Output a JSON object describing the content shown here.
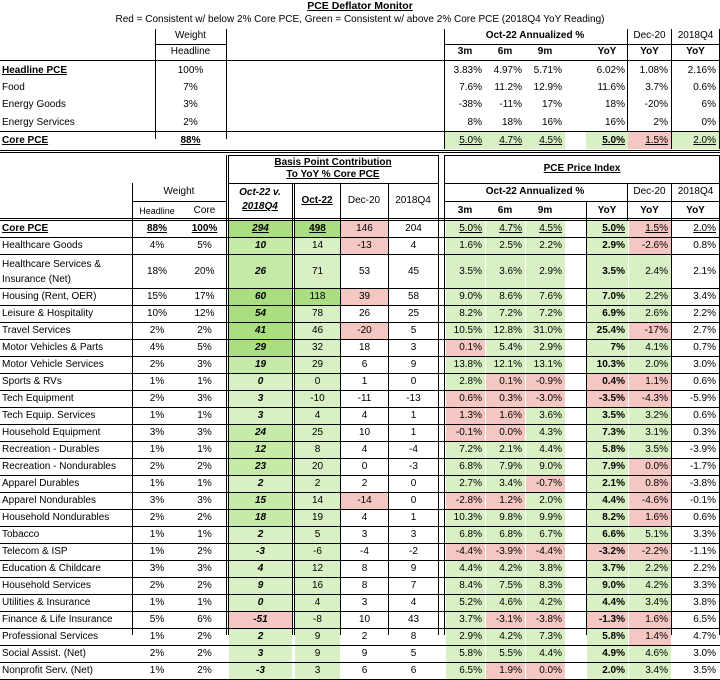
{
  "title": "PCE Deflator Monitor",
  "subtitle": "Red = Consistent w/ below 2% Core PCE, Green = Consistent w/ above 2% Core PCE (2018Q4 YoY Reading)",
  "top": {
    "weight_label": "Weight",
    "headline_label": "Headline",
    "annualized_label": "Oct-22 Annualized %",
    "dec20_label": "Dec-20",
    "q4_label": "2018Q4",
    "cols": [
      "3m",
      "6m",
      "9m",
      "YoY",
      "YoY",
      "YoY"
    ],
    "rows": [
      {
        "name": "Headline PCE",
        "w": "100%",
        "v": [
          "3.83%",
          "4.97%",
          "5.71%",
          "6.02%",
          "1.08%",
          "2.16%"
        ]
      },
      {
        "name": "Food",
        "w": "7%",
        "v": [
          "7.6%",
          "11.2%",
          "12.9%",
          "11.6%",
          "3.7%",
          "0.6%"
        ]
      },
      {
        "name": "Energy Goods",
        "w": "3%",
        "v": [
          "-38%",
          "-11%",
          "17%",
          "18%",
          "-20%",
          "6%"
        ]
      },
      {
        "name": "Energy Services",
        "w": "2%",
        "v": [
          "8%",
          "18%",
          "16%",
          "16%",
          "2%",
          "0%"
        ]
      },
      {
        "name": "Core PCE",
        "w": "88%",
        "v": [
          "5.0%",
          "4.7%",
          "4.5%",
          "5.0%",
          "1.5%",
          "2.0%"
        ]
      }
    ]
  },
  "bottom": {
    "weight_label": "Weight",
    "headline_label": "Headline",
    "core_label": "Core",
    "bp_title1": "Basis Point Contribution",
    "bp_title2": "To YoY % Core PCE",
    "bp_cols": [
      "Oct-22 v.",
      "2018Q4",
      "Oct-22",
      "Dec-20",
      "2018Q4"
    ],
    "price_title": "PCE Price Index",
    "annualized_label": "Oct-22 Annualized %",
    "dec20_label": "Dec-20",
    "q4_label": "2018Q4",
    "pcols": [
      "3m",
      "6m",
      "9m",
      "YoY",
      "YoY",
      "YoY"
    ],
    "rows": [
      {
        "name": "Core PCE",
        "h": "88%",
        "c": "100%",
        "d": "294",
        "o": "498",
        "dc": "146",
        "q": "204",
        "p": [
          "5.0%",
          "4.7%",
          "4.5%",
          "5.0%",
          "1.5%",
          "2.0%"
        ]
      },
      {
        "name": "Healthcare Goods",
        "h": "4%",
        "c": "5%",
        "d": "10",
        "o": "14",
        "dc": "-13",
        "q": "4",
        "p": [
          "1.6%",
          "2.5%",
          "2.2%",
          "2.9%",
          "-2.6%",
          "0.8%"
        ]
      },
      {
        "name": "Healthcare Services & Insurance (Net)",
        "h": "18%",
        "c": "20%",
        "d": "26",
        "o": "71",
        "dc": "53",
        "q": "45",
        "p": [
          "3.5%",
          "3.6%",
          "2.9%",
          "3.5%",
          "2.4%",
          "2.1%"
        ]
      },
      {
        "name": "Housing (Rent, OER)",
        "h": "15%",
        "c": "17%",
        "d": "60",
        "o": "118",
        "dc": "39",
        "q": "58",
        "p": [
          "9.0%",
          "8.6%",
          "7.6%",
          "7.0%",
          "2.2%",
          "3.4%"
        ]
      },
      {
        "name": "Leisure & Hospitality",
        "h": "10%",
        "c": "12%",
        "d": "54",
        "o": "78",
        "dc": "26",
        "q": "25",
        "p": [
          "8.2%",
          "7.2%",
          "7.2%",
          "6.9%",
          "2.6%",
          "2.2%"
        ]
      },
      {
        "name": "Travel Services",
        "h": "2%",
        "c": "2%",
        "d": "41",
        "o": "46",
        "dc": "-20",
        "q": "5",
        "p": [
          "10.5%",
          "12.8%",
          "31.0%",
          "25.4%",
          "-17%",
          "2.7%"
        ]
      },
      {
        "name": "Motor Vehicles & Parts",
        "h": "4%",
        "c": "5%",
        "d": "29",
        "o": "32",
        "dc": "18",
        "q": "3",
        "p": [
          "0.1%",
          "5.4%",
          "2.9%",
          "7%",
          "4.1%",
          "0.7%"
        ]
      },
      {
        "name": "Motor Vehicle Services",
        "h": "2%",
        "c": "3%",
        "d": "19",
        "o": "29",
        "dc": "6",
        "q": "9",
        "p": [
          "13.8%",
          "12.1%",
          "13.1%",
          "10.3%",
          "2.0%",
          "3.0%"
        ]
      },
      {
        "name": "Sports & RVs",
        "h": "1%",
        "c": "1%",
        "d": "0",
        "o": "0",
        "dc": "1",
        "q": "0",
        "p": [
          "2.8%",
          "0.1%",
          "-0.9%",
          "0.4%",
          "1.1%",
          "0.6%"
        ]
      },
      {
        "name": "Tech Equipment",
        "h": "2%",
        "c": "3%",
        "d": "3",
        "o": "-10",
        "dc": "-11",
        "q": "-13",
        "p": [
          "0.6%",
          "0.3%",
          "-3.0%",
          "-3.5%",
          "-4.3%",
          "-5.9%"
        ]
      },
      {
        "name": "Tech Equip. Services",
        "h": "1%",
        "c": "1%",
        "d": "3",
        "o": "4",
        "dc": "4",
        "q": "1",
        "p": [
          "1.3%",
          "1.6%",
          "3.6%",
          "3.5%",
          "3.2%",
          "0.6%"
        ]
      },
      {
        "name": "Household Equipment",
        "h": "3%",
        "c": "3%",
        "d": "24",
        "o": "25",
        "dc": "10",
        "q": "1",
        "p": [
          "-0.1%",
          "0.0%",
          "4.3%",
          "7.3%",
          "3.1%",
          "0.3%"
        ]
      },
      {
        "name": "Recreation - Durables",
        "h": "1%",
        "c": "1%",
        "d": "12",
        "o": "8",
        "dc": "4",
        "q": "-4",
        "p": [
          "7.2%",
          "2.1%",
          "4.4%",
          "5.8%",
          "3.5%",
          "-3.9%"
        ]
      },
      {
        "name": "Recreation - Nondurables",
        "h": "2%",
        "c": "2%",
        "d": "23",
        "o": "20",
        "dc": "0",
        "q": "-3",
        "p": [
          "6.8%",
          "7.9%",
          "9.0%",
          "7.9%",
          "0.0%",
          "-1.7%"
        ]
      },
      {
        "name": "Apparel Durables",
        "h": "1%",
        "c": "1%",
        "d": "2",
        "o": "2",
        "dc": "2",
        "q": "0",
        "p": [
          "2.7%",
          "3.4%",
          "-0.7%",
          "2.1%",
          "0.8%",
          "-3.8%"
        ]
      },
      {
        "name": "Apparel Nondurables",
        "h": "3%",
        "c": "3%",
        "d": "15",
        "o": "14",
        "dc": "-14",
        "q": "0",
        "p": [
          "-2.8%",
          "1.2%",
          "2.0%",
          "4.4%",
          "-4.6%",
          "-0.1%"
        ]
      },
      {
        "name": "Household Nondurables",
        "h": "2%",
        "c": "2%",
        "d": "18",
        "o": "19",
        "dc": "4",
        "q": "1",
        "p": [
          "10.3%",
          "9.8%",
          "9.9%",
          "8.2%",
          "1.6%",
          "0.6%"
        ]
      },
      {
        "name": "Tobacco",
        "h": "1%",
        "c": "1%",
        "d": "2",
        "o": "5",
        "dc": "3",
        "q": "3",
        "p": [
          "6.8%",
          "6.8%",
          "6.7%",
          "6.6%",
          "5.1%",
          "3.3%"
        ]
      },
      {
        "name": "Telecom & ISP",
        "h": "1%",
        "c": "2%",
        "d": "-3",
        "o": "-6",
        "dc": "-4",
        "q": "-2",
        "p": [
          "-4.4%",
          "-3.9%",
          "-4.4%",
          "-3.2%",
          "-2.2%",
          "-1.1%"
        ]
      },
      {
        "name": "Education & Childcare",
        "h": "3%",
        "c": "3%",
        "d": "4",
        "o": "12",
        "dc": "8",
        "q": "9",
        "p": [
          "4.4%",
          "4.2%",
          "3.8%",
          "3.7%",
          "2.2%",
          "2.2%"
        ]
      },
      {
        "name": "Household Services",
        "h": "2%",
        "c": "2%",
        "d": "9",
        "o": "16",
        "dc": "8",
        "q": "7",
        "p": [
          "8.4%",
          "7.5%",
          "8.3%",
          "9.0%",
          "4.2%",
          "3.3%"
        ]
      },
      {
        "name": "Utilities & Insurance",
        "h": "1%",
        "c": "1%",
        "d": "0",
        "o": "4",
        "dc": "3",
        "q": "4",
        "p": [
          "5.2%",
          "4.6%",
          "4.2%",
          "4.4%",
          "3.4%",
          "3.8%"
        ]
      },
      {
        "name": "Finance & Life Insurance",
        "h": "5%",
        "c": "6%",
        "d": "-51",
        "o": "-8",
        "dc": "10",
        "q": "43",
        "p": [
          "3.7%",
          "-3.1%",
          "-3.8%",
          "-1.3%",
          "1.6%",
          "6.5%"
        ]
      },
      {
        "name": "Professional Services",
        "h": "1%",
        "c": "2%",
        "d": "2",
        "o": "9",
        "dc": "2",
        "q": "8",
        "p": [
          "2.9%",
          "4.2%",
          "7.3%",
          "5.8%",
          "1.4%",
          "4.7%"
        ]
      },
      {
        "name": "Social Assist. (Net)",
        "h": "2%",
        "c": "2%",
        "d": "3",
        "o": "9",
        "dc": "9",
        "q": "5",
        "p": [
          "5.8%",
          "5.5%",
          "4.4%",
          "4.9%",
          "4.6%",
          "3.0%"
        ]
      },
      {
        "name": "Nonprofit Serv. (Net)",
        "h": "1%",
        "c": "2%",
        "d": "-3",
        "o": "3",
        "dc": "6",
        "q": "6",
        "p": [
          "6.5%",
          "1.9%",
          "0.0%",
          "2.0%",
          "3.4%",
          "3.5%"
        ]
      }
    ]
  },
  "colors": {
    "red": "#f4c7c3",
    "green": "#d8f0c4",
    "strong_green": "#a9df80"
  }
}
